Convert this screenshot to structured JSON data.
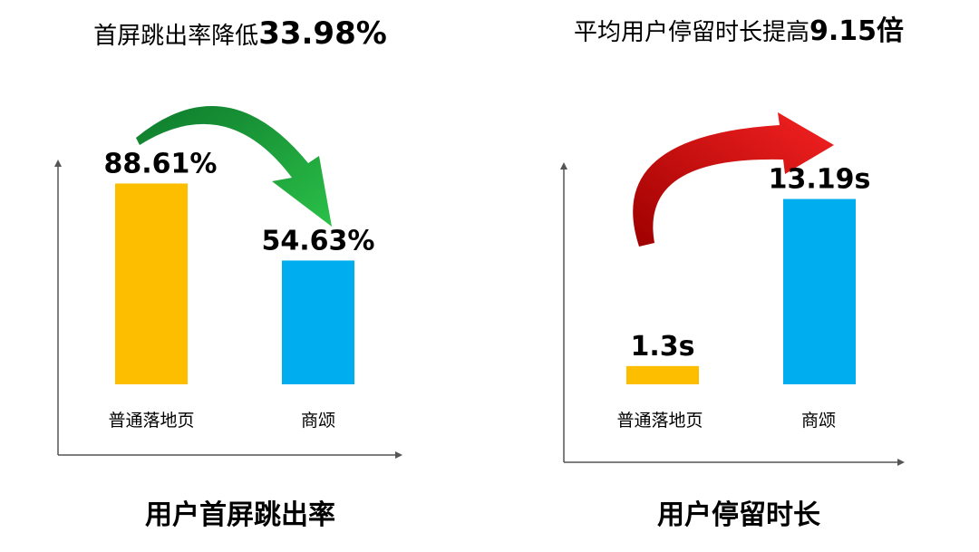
{
  "colors": {
    "orange": "#FDBE00",
    "blue": "#00AEEF",
    "axis": "#555555",
    "arrow_green": "#1EA63A",
    "arrow_red": "#E31010"
  },
  "chart_data": [
    {
      "type": "bar",
      "headline_prefix": "首屏跳出率降低",
      "headline_value": "33.98%",
      "caption": "用户首屏跳出率",
      "categories": [
        "普通落地页",
        "商颂"
      ],
      "values": [
        88.61,
        54.63
      ],
      "value_labels": [
        "88.61%",
        "54.63%"
      ],
      "colors": [
        "#FDBE00",
        "#00AEEF"
      ],
      "ylim": [
        0,
        100
      ],
      "arrow": "green-down",
      "grid": false
    },
    {
      "type": "bar",
      "headline_prefix": "平均用户停留时长提高",
      "headline_value": "9.15倍",
      "caption": "用户停留时长",
      "categories": [
        "普通落地页",
        "商颂"
      ],
      "values": [
        1.3,
        13.19
      ],
      "value_labels": [
        "1.3s",
        "13.19s"
      ],
      "colors": [
        "#FDBE00",
        "#00AEEF"
      ],
      "ylim": [
        0,
        18
      ],
      "arrow": "red-up",
      "grid": false
    }
  ]
}
